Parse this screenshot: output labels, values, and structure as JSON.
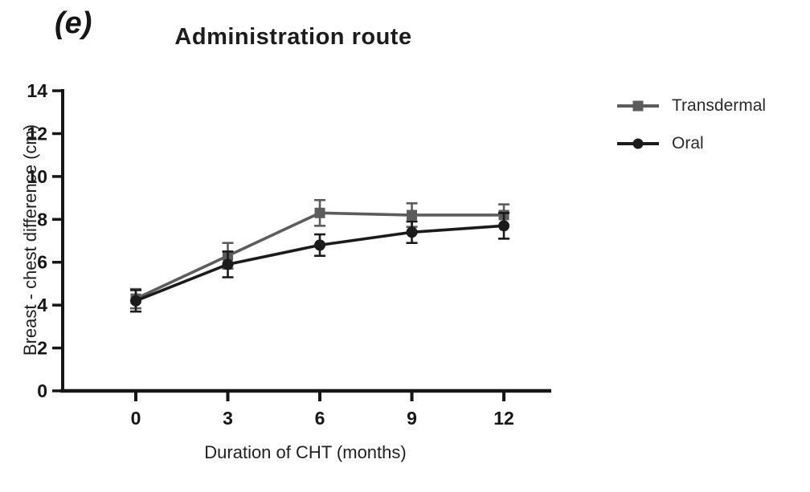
{
  "chart_data": {
    "type": "line",
    "panel_label": "(e)",
    "title": "Administration route",
    "xlabel": "Duration of CHT (months)",
    "ylabel": "Breast - chest difference (cm)",
    "x": [
      0,
      3,
      6,
      9,
      12
    ],
    "yticks": [
      0,
      2,
      4,
      6,
      8,
      10,
      12,
      14
    ],
    "ylim": [
      0,
      14
    ],
    "xlim": [
      0,
      13.5
    ],
    "grid": false,
    "legend_position": "right",
    "axis_color": "#161616",
    "series": [
      {
        "name": "Transdermal",
        "marker": "square",
        "color": "#5c5c5c",
        "values": [
          4.3,
          6.3,
          8.3,
          8.2,
          8.2
        ],
        "errors": [
          0.45,
          0.6,
          0.6,
          0.55,
          0.5
        ]
      },
      {
        "name": "Oral",
        "marker": "circle",
        "color": "#1b1b1b",
        "values": [
          4.2,
          5.9,
          6.8,
          7.4,
          7.7
        ],
        "errors": [
          0.5,
          0.6,
          0.5,
          0.5,
          0.6
        ]
      }
    ]
  }
}
